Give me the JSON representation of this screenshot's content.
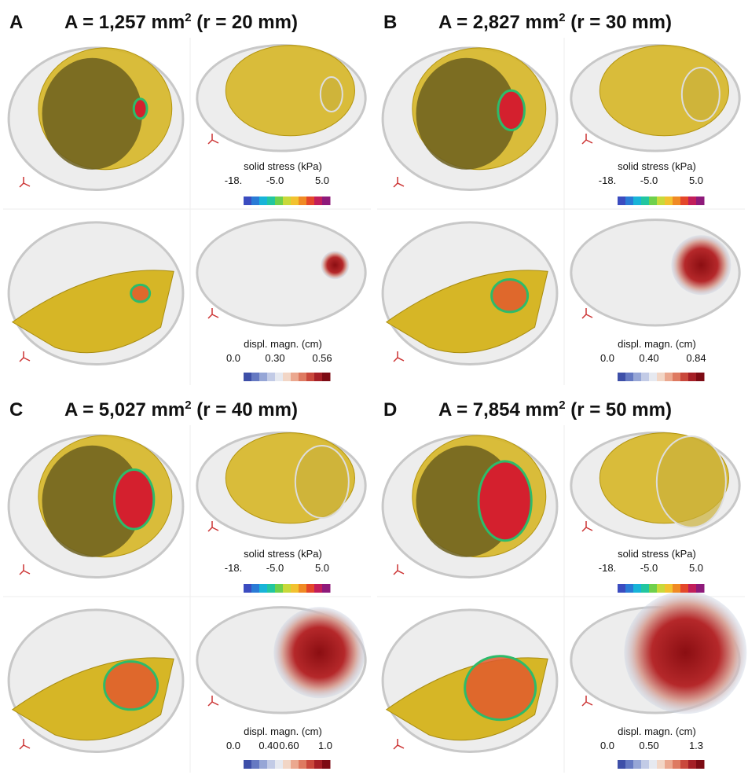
{
  "panels": [
    {
      "label": "A",
      "title_main": "A = 1,257 mm",
      "title_sup": "2",
      "title_rest": " (r = 20 mm)",
      "stress_title": "solid stress (kPa)",
      "stress_ticks": [
        "-18.",
        "-5.0",
        "5.0"
      ],
      "displ_title": "displ. magn. (cm)",
      "displ_ticks": [
        "0.0",
        "0.30",
        "0.56"
      ]
    },
    {
      "label": "B",
      "title_main": "A = 2,827 mm",
      "title_sup": "2",
      "title_rest": " (r = 30 mm)",
      "stress_title": "solid stress (kPa)",
      "stress_ticks": [
        "-18.",
        "-5.0",
        "5.0"
      ],
      "displ_title": "displ. magn. (cm)",
      "displ_ticks": [
        "0.0",
        "0.40",
        "0.84"
      ]
    },
    {
      "label": "C",
      "title_main": "A = 5,027 mm",
      "title_sup": "2",
      "title_rest": " (r = 40 mm)",
      "stress_title": "solid stress (kPa)",
      "stress_ticks": [
        "-18.",
        "-5.0",
        "5.0"
      ],
      "displ_title": "displ. magn. (cm)",
      "displ_ticks": [
        "0.0",
        "0.40",
        "0.60",
        "1.0"
      ]
    },
    {
      "label": "D",
      "title_main": "A = 7,854 mm",
      "title_sup": "2",
      "title_rest": " (r = 50 mm)",
      "stress_title": "solid stress (kPa)",
      "stress_ticks": [
        "-18.",
        "-5.0",
        "5.0"
      ],
      "displ_title": "displ. magn. (cm)",
      "displ_ticks": [
        "0.0",
        "0.50",
        "1.3"
      ]
    }
  ]
}
